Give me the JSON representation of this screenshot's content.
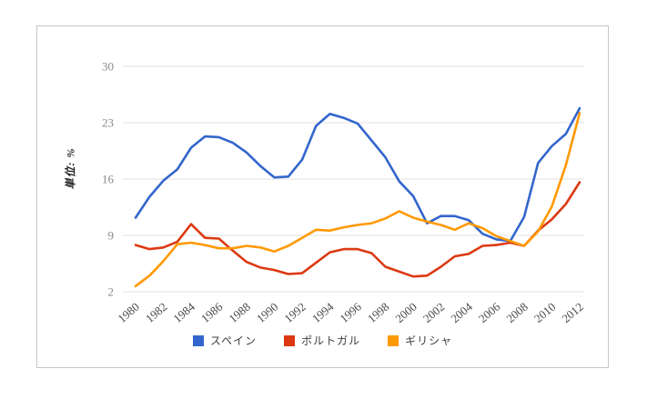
{
  "chart_data": {
    "type": "line",
    "title": "",
    "ylabel": "単位: %",
    "xlabel": "",
    "grid": true,
    "legend_position": "bottom",
    "ylim": [
      2,
      30
    ],
    "yticks": [
      2,
      9,
      16,
      23,
      30
    ],
    "x_tick_step": 2,
    "x": [
      1980,
      1981,
      1982,
      1983,
      1984,
      1985,
      1986,
      1987,
      1988,
      1989,
      1990,
      1991,
      1992,
      1993,
      1994,
      1995,
      1996,
      1997,
      1998,
      1999,
      2000,
      2001,
      2002,
      2003,
      2004,
      2005,
      2006,
      2007,
      2008,
      2009,
      2010,
      2011,
      2012
    ],
    "series": [
      {
        "key": "spain",
        "name": "スペイン",
        "color": "#3366cc",
        "values": [
          11.2,
          13.8,
          15.8,
          17.2,
          19.9,
          21.3,
          21.2,
          20.5,
          19.3,
          17.6,
          16.2,
          16.3,
          18.4,
          22.6,
          24.1,
          23.6,
          22.9,
          20.8,
          18.7,
          15.7,
          13.9,
          10.5,
          11.4,
          11.4,
          10.9,
          9.2,
          8.5,
          8.3,
          11.3,
          18.0,
          20.1,
          21.6,
          24.8
        ]
      },
      {
        "key": "portugal",
        "name": "ポルトガル",
        "color": "#dc3912",
        "values": [
          7.8,
          7.3,
          7.5,
          8.2,
          10.4,
          8.7,
          8.6,
          7.1,
          5.7,
          5.0,
          4.7,
          4.2,
          4.3,
          5.6,
          6.9,
          7.3,
          7.3,
          6.8,
          5.1,
          4.5,
          3.9,
          4.0,
          5.1,
          6.4,
          6.7,
          7.7,
          7.8,
          8.1,
          7.7,
          9.6,
          11.0,
          12.9,
          15.6
        ]
      },
      {
        "key": "greece",
        "name": "ギリシャ",
        "color": "#ff9900",
        "values": [
          2.7,
          4.0,
          5.8,
          7.9,
          8.1,
          7.8,
          7.4,
          7.4,
          7.7,
          7.5,
          7.0,
          7.7,
          8.7,
          9.7,
          9.6,
          10.0,
          10.3,
          10.5,
          11.1,
          12.0,
          11.2,
          10.7,
          10.3,
          9.7,
          10.5,
          9.9,
          8.9,
          8.3,
          7.7,
          9.5,
          12.6,
          17.7,
          24.2
        ]
      }
    ],
    "style": {
      "gridline_color": "#e2e2e2",
      "y_tick_color": "#8a8a8a",
      "x_tick_color": "#4a4a4a",
      "card_border_color": "#c6c6c6"
    }
  }
}
